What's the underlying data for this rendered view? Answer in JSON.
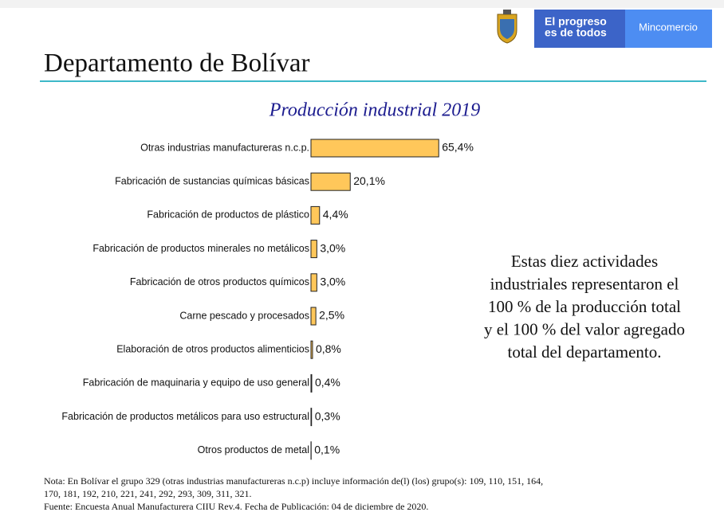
{
  "header": {
    "title": "Departamento de Bolívar",
    "logo_slogan": [
      "El progreso",
      "es de todos"
    ],
    "logo_ministry": "Mincomercio"
  },
  "chart_data": {
    "type": "bar",
    "orientation": "horizontal",
    "title": "Producción industrial 2019",
    "categories": [
      "Otras industrias manufactureras n.c.p.",
      "Fabricación de sustancias químicas básicas",
      "Fabricación de productos de plástico",
      "Fabricación de productos minerales no metálicos",
      "Fabricación de otros productos químicos",
      "Carne pescado y procesados",
      "Elaboración de otros productos alimenticios",
      "Fabricación de maquinaria y equipo de uso general",
      "Fabricación de productos metálicos para uso estructural",
      "Otros productos de metal"
    ],
    "values": [
      65.4,
      20.1,
      4.4,
      3.0,
      3.0,
      2.5,
      0.8,
      0.4,
      0.3,
      0.1
    ],
    "value_labels": [
      "65,4%",
      "20,1%",
      "4,4%",
      "3,0%",
      "3,0%",
      "2,5%",
      "0,8%",
      "0,4%",
      "0,3%",
      "0,1%"
    ],
    "color": "#ffc75a"
  },
  "side_text": {
    "lines": [
      "Estas diez actividades",
      "industriales representaron el",
      "100 % de la producción total",
      "y el 100 % del valor agregado",
      "total del departamento."
    ]
  },
  "notes": {
    "lines": [
      "Nota: En Bolívar el grupo 329 (otras industrias manufactureras n.c.p) incluye información de(l) (los) grupo(s): 109, 110, 151, 164,",
      "170, 181, 192, 210, 221, 241, 292, 293, 309, 311, 321.",
      "Fuente: Encuesta Anual Manufacturera CIIU Rev.4. Fecha de Publicación: 04 de diciembre de 2020."
    ]
  }
}
